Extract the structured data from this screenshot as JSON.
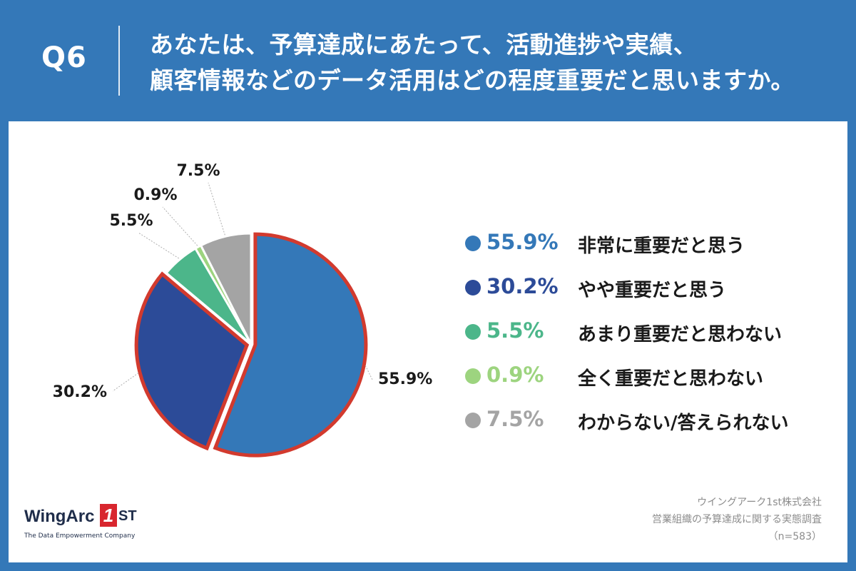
{
  "header": {
    "qnum": "Q6",
    "question_lines": [
      "あなたは、予算達成にあたって、活動進捗や実績、",
      "顧客情報などのデータ活用はどの程度重要だと思いますか。"
    ]
  },
  "colors": {
    "header_bg": "#3478b8",
    "highlight_outline": "#d23a2e",
    "leader_line": "#b0b0b0"
  },
  "chart_data": {
    "type": "pie",
    "slices": [
      {
        "label": "非常に重要だと思う",
        "value": 55.9,
        "value_label": "55.9%",
        "color": "#3478b8",
        "highlighted": true
      },
      {
        "label": "やや重要だと思う",
        "value": 30.2,
        "value_label": "30.2%",
        "color": "#2c4b98",
        "highlighted": true
      },
      {
        "label": "あまり重要だと思わない",
        "value": 5.5,
        "value_label": "5.5%",
        "color": "#4cb68a",
        "highlighted": false
      },
      {
        "label": "全く重要だと思わない",
        "value": 0.9,
        "value_label": "0.9%",
        "color": "#9dd47f",
        "highlighted": false
      },
      {
        "label": "わからない/答えられない",
        "value": 7.5,
        "value_label": "7.5%",
        "color": "#a4a4a4",
        "highlighted": false
      }
    ],
    "legend_position": "right"
  },
  "footer": {
    "company": "ウイングアーク1st株式会社",
    "survey": "営業組織の予算達成に関する実態調査",
    "sample": "（n=583）"
  },
  "logo": {
    "word": "WingArc",
    "mark": "1",
    "suffix": "ST",
    "tagline": "The Data Empowerment Company"
  }
}
